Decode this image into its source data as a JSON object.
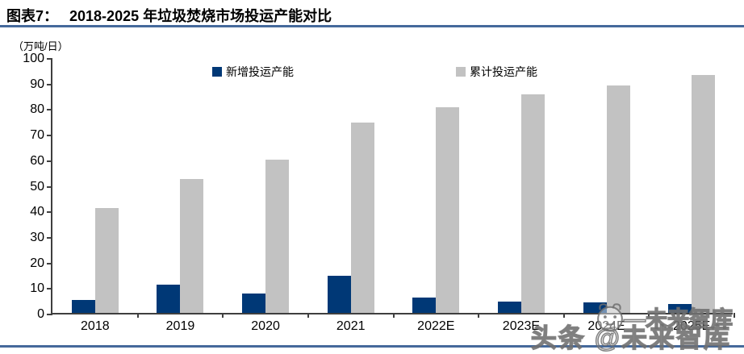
{
  "header": {
    "label": "图表7：",
    "title": "2018-2025 年垃圾焚烧市场投运产能对比"
  },
  "chart_data": {
    "type": "bar",
    "title": "2018-2025 年垃圾焚烧市场投运产能对比",
    "unit_label": "（万吨/日）",
    "categories": [
      "2018",
      "2019",
      "2020",
      "2021",
      "2022E",
      "2023E",
      "2024E",
      "2025E"
    ],
    "series": [
      {
        "name": "新增投运产能",
        "color": "#003876",
        "values": [
          5,
          11,
          7.5,
          14.5,
          6,
          4.5,
          4,
          3.5
        ]
      },
      {
        "name": "累计投运产能",
        "color": "#c2c2c2",
        "values": [
          41,
          52.5,
          60,
          74.5,
          80.5,
          85.5,
          89,
          93
        ]
      }
    ],
    "ylim": [
      0,
      100
    ],
    "yticks": [
      0,
      10,
      20,
      30,
      40,
      50,
      60,
      70,
      80,
      90,
      100
    ],
    "grid": false,
    "legend_position": "top"
  },
  "watermark": {
    "small": "—未来智库",
    "large": "头条 @未来智库"
  },
  "colors": {
    "accent_rule": "#45699b",
    "axis": "#3f3f3f",
    "bar_new": "#003876",
    "bar_cumulative": "#c2c2c2"
  }
}
